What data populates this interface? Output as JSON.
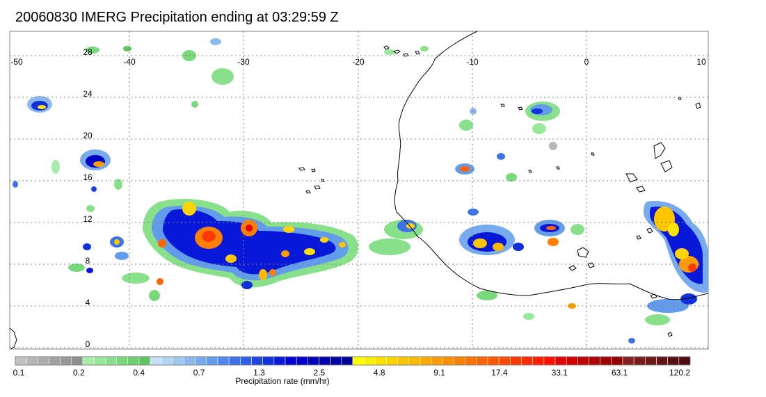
{
  "title": "20060830 IMERG Precipitation ending at 03:29:59 Z",
  "map": {
    "lon_labels": [
      "-50",
      "-40",
      "-30",
      "-20",
      "-10",
      "0",
      "10"
    ],
    "lat_labels": [
      "28",
      "24",
      "20",
      "16",
      "12",
      "8",
      "4",
      "0"
    ],
    "lon_range": [
      -50,
      10
    ],
    "lat_range": [
      -0.5,
      29.5
    ],
    "grid": "dotted",
    "basemap": "coastlines of West Africa and the Gulf of Guinea"
  },
  "colorbar": {
    "title": "Precipitation rate (mm/hr)",
    "tick_labels": [
      "0.1",
      "0.2",
      "0.4",
      "0.7",
      "1.3",
      "2.5",
      "4.8",
      "9.1",
      "17.4",
      "33.1",
      "63.1",
      "120.2"
    ],
    "colors": [
      "#c2c2c2",
      "#b6b6b6",
      "#acacac",
      "#a2a2a2",
      "#989898",
      "#8e8e8e",
      "#a8ecaa",
      "#98e89a",
      "#88e08a",
      "#78d87c",
      "#6ccf70",
      "#60c664",
      "#c6ddf6",
      "#b4d2f4",
      "#a0c6f2",
      "#8cb8f0",
      "#78aaee",
      "#649cec",
      "#5088ea",
      "#3c74e8",
      "#2c5ee6",
      "#1e46e2",
      "#1030de",
      "#0818d8",
      "#0000d0",
      "#0000c6",
      "#0000bc",
      "#0000b2",
      "#0000a8",
      "#00009c",
      "#ffff00",
      "#fff000",
      "#ffe200",
      "#ffd400",
      "#ffc600",
      "#ffb800",
      "#ffaa00",
      "#ff9c00",
      "#ff8e00",
      "#ff8000",
      "#ff7200",
      "#ff6400",
      "#ff5600",
      "#ff4800",
      "#ff3a00",
      "#ff2c00",
      "#ff1e00",
      "#ff1000",
      "#e00000",
      "#d00000",
      "#c00000",
      "#b00000",
      "#a00000",
      "#900000",
      "#862020",
      "#7a1c1c",
      "#6e1818",
      "#621414",
      "#561010",
      "#4a0c0c"
    ]
  }
}
